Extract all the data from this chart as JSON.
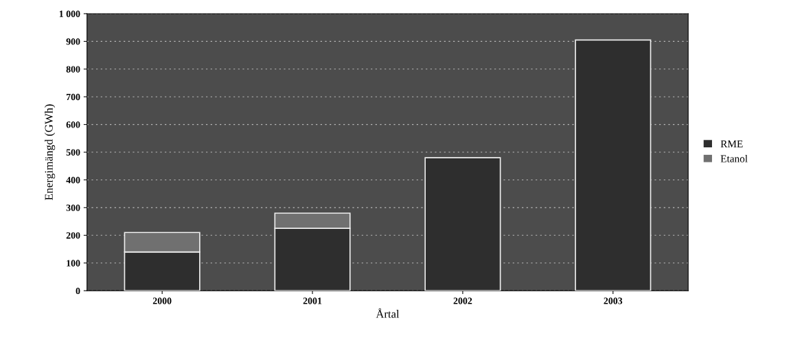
{
  "chart_data": {
    "type": "bar",
    "stacked": true,
    "xlabel": "Årtal",
    "ylabel": "Energimängd (GWh)",
    "categories": [
      "2000",
      "2001",
      "2002",
      "2003"
    ],
    "series": [
      {
        "name": "RME",
        "color": "#2e2e2e",
        "values": [
          140,
          225,
          480,
          905
        ]
      },
      {
        "name": "Etanol",
        "color": "#707070",
        "values": [
          70,
          55,
          null,
          null
        ]
      }
    ],
    "ylim": [
      0,
      1000
    ],
    "yticks": [
      0,
      100,
      200,
      300,
      400,
      500,
      600,
      700,
      800,
      900,
      {
        "value": 1000,
        "label": "1 000"
      }
    ],
    "grid": "y",
    "legend": "right"
  }
}
